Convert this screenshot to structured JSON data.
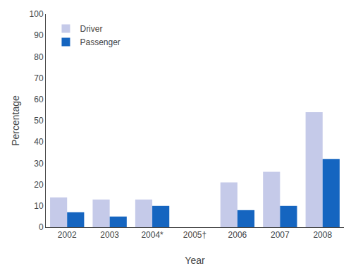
{
  "chart_data": {
    "type": "bar",
    "categories": [
      "2002",
      "2003",
      "2004*",
      "2005†",
      "2006",
      "2007",
      "2008"
    ],
    "series": [
      {
        "name": "Driver",
        "color": "#c5cae9",
        "values": [
          14,
          13,
          13,
          0,
          21,
          26,
          54
        ]
      },
      {
        "name": "Passenger",
        "color": "#1565c0",
        "values": [
          7,
          5,
          10,
          0,
          8,
          10,
          32
        ]
      }
    ],
    "xlabel": "Year",
    "ylabel": "Percentage",
    "ylim": [
      0,
      100
    ],
    "yticks": [
      0,
      10,
      20,
      30,
      40,
      50,
      60,
      70,
      80,
      90,
      100
    ],
    "grid": false,
    "legend": "upper left"
  }
}
